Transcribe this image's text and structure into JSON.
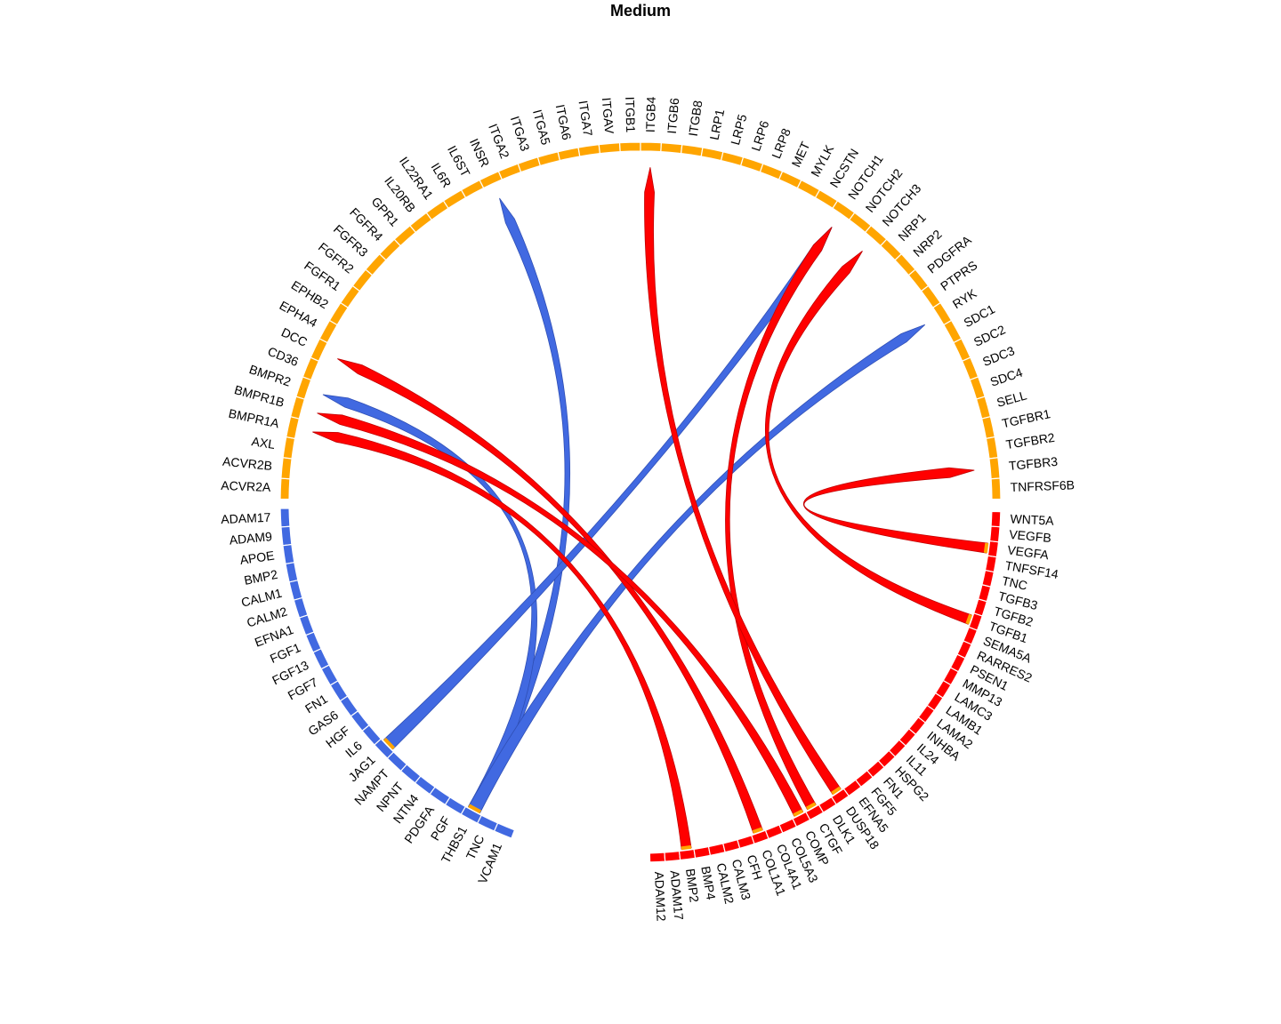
{
  "title": "Medium",
  "colors": {
    "receptor": "#FFA500",
    "ligand_blue": "#4169E1",
    "ligand_red": "#FF0000",
    "link_blue_stroke": "#2f4fb5",
    "link_red_stroke": "#c00000"
  },
  "groups": [
    {
      "name": "receptors",
      "color": "#FFA500",
      "labels": [
        "ACVR2A",
        "ACVR2B",
        "AXL",
        "BMPR1A",
        "BMPR1B",
        "BMPR2",
        "CD36",
        "DCC",
        "EPHA4",
        "EPHB2",
        "FGFR1",
        "FGFR2",
        "FGFR3",
        "FGFR4",
        "GPR1",
        "IL20RB",
        "IL22RA1",
        "IL6R",
        "IL6ST",
        "INSR",
        "ITGA2",
        "ITGA3",
        "ITGA5",
        "ITGA6",
        "ITGA7",
        "ITGAV",
        "ITGB1",
        "ITGB4",
        "ITGB6",
        "ITGB8",
        "LRP1",
        "LRP5",
        "LRP6",
        "LRP8",
        "MET",
        "MYLK",
        "NCSTN",
        "NOTCH1",
        "NOTCH2",
        "NOTCH3",
        "NRP1",
        "NRP2",
        "PDGFRA",
        "PTPRS",
        "RYK",
        "SDC1",
        "SDC2",
        "SDC3",
        "SDC4",
        "SELL",
        "TGFBR1",
        "TGFBR2",
        "TGFBR3",
        "TNFRSF6B"
      ]
    },
    {
      "name": "ligands_red",
      "color": "#FF0000",
      "labels": [
        "ADAM12",
        "ADAM17",
        "BMP2",
        "BMP4",
        "CALM2",
        "CALM3",
        "CFH",
        "COL1A1",
        "COL4A1",
        "COL5A3",
        "COMP",
        "CTGF",
        "DLK1",
        "DUSP18",
        "EFNA5",
        "FGF5",
        "FN1",
        "HSPG2",
        "IL11",
        "IL24",
        "INHBA",
        "LAMA2",
        "LAMB1",
        "LAMC3",
        "MMP13",
        "PSEN1",
        "RARRES2",
        "SEMA5A",
        "TGFB1",
        "TGFB2",
        "TGFB3",
        "TNC",
        "TNFSF14",
        "VEGFA",
        "VEGFB",
        "WNT5A"
      ]
    },
    {
      "name": "ligands_blue",
      "color": "#4169E1",
      "labels": [
        "ADAM17",
        "ADAM9",
        "APOE",
        "BMP2",
        "CALM1",
        "CALM2",
        "EFNA1",
        "FGF1",
        "FGF13",
        "FGF7",
        "FN1",
        "GAS6",
        "HGF",
        "IL6",
        "JAG1",
        "NAMPT",
        "NPNT",
        "NTN4",
        "PDGFA",
        "PGF",
        "THBS1",
        "TNC",
        "VCAM1"
      ]
    }
  ],
  "links": [
    {
      "from_group": 2,
      "from": "THBS1",
      "to": "INSR",
      "color": "#4169E1"
    },
    {
      "from_group": 2,
      "from": "THBS1",
      "to": "BMPR2",
      "color": "#4169E1"
    },
    {
      "from_group": 2,
      "from": "THBS1",
      "to": "RYK",
      "color": "#4169E1"
    },
    {
      "from_group": 2,
      "from": "JAG1",
      "to": "NOTCH1",
      "color": "#4169E1"
    },
    {
      "from_group": 1,
      "from": "BMP2",
      "to": "BMPR1A",
      "color": "#FF0000"
    },
    {
      "from_group": 1,
      "from": "COL1A1",
      "to": "DCC",
      "color": "#FF0000"
    },
    {
      "from_group": 1,
      "from": "COMP",
      "to": "BMPR1B",
      "color": "#FF0000"
    },
    {
      "from_group": 1,
      "from": "CTGF",
      "to": "NOTCH1",
      "color": "#FF0000"
    },
    {
      "from_group": 1,
      "from": "DUSP18",
      "to": "ITGB4",
      "color": "#FF0000"
    },
    {
      "from_group": 1,
      "from": "TGFB1",
      "to": "NOTCH3",
      "color": "#FF0000"
    },
    {
      "from_group": 1,
      "from": "VEGFA",
      "to": "TGFBR3",
      "color": "#FF0000"
    }
  ]
}
